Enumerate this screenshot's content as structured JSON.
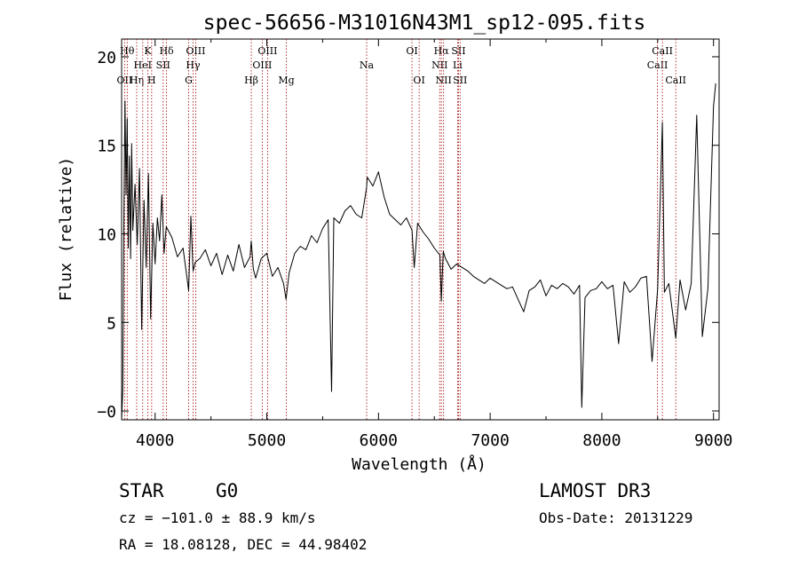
{
  "chart_data": {
    "type": "line",
    "title": "spec-56656-M31016N43M1_sp12-095.fits",
    "xlabel": "Wavelength (Å)",
    "ylabel": "Flux (relative)",
    "xlim": [
      3700,
      9050
    ],
    "ylim": [
      -0.5,
      21
    ],
    "x_ticks": [
      4000,
      5000,
      6000,
      7000,
      8000,
      9000
    ],
    "y_ticks": [
      0,
      5,
      10,
      15,
      20
    ],
    "x_tick_labels": [
      "4000",
      "5000",
      "6000",
      "7000",
      "8000",
      "9000"
    ],
    "y_tick_labels": [
      "−0",
      "5",
      "10",
      "15",
      "20"
    ],
    "grid": false,
    "series": [
      {
        "name": "flux",
        "x": [
          3700,
          3710,
          3720,
          3730,
          3740,
          3750,
          3760,
          3770,
          3780,
          3790,
          3800,
          3820,
          3840,
          3860,
          3880,
          3900,
          3920,
          3940,
          3960,
          3980,
          4000,
          4020,
          4040,
          4060,
          4080,
          4100,
          4150,
          4200,
          4250,
          4300,
          4320,
          4340,
          4360,
          4400,
          4450,
          4500,
          4550,
          4600,
          4650,
          4700,
          4750,
          4800,
          4850,
          4861,
          4880,
          4900,
          4950,
          5000,
          5050,
          5100,
          5150,
          5172,
          5200,
          5250,
          5300,
          5350,
          5400,
          5450,
          5500,
          5550,
          5580,
          5600,
          5650,
          5700,
          5750,
          5800,
          5850,
          5893,
          5900,
          5950,
          6000,
          6050,
          6100,
          6150,
          6200,
          6250,
          6300,
          6320,
          6350,
          6400,
          6450,
          6500,
          6550,
          6563,
          6580,
          6600,
          6650,
          6700,
          6750,
          6800,
          6850,
          6900,
          6950,
          7000,
          7050,
          7100,
          7150,
          7200,
          7250,
          7300,
          7350,
          7400,
          7450,
          7500,
          7550,
          7600,
          7650,
          7700,
          7750,
          7800,
          7820,
          7850,
          7900,
          7950,
          8000,
          8050,
          8100,
          8150,
          8200,
          8250,
          8300,
          8350,
          8400,
          8450,
          8500,
          8542,
          8560,
          8600,
          8662,
          8700,
          8750,
          8800,
          8850,
          8900,
          8950,
          9000,
          9020
        ],
        "y": [
          -0.5,
          1.2,
          10.5,
          17.5,
          12.2,
          16.5,
          9.2,
          14.4,
          8.6,
          15.1,
          10.2,
          12.8,
          9.4,
          13.7,
          4.6,
          11.9,
          8.1,
          13.4,
          5.2,
          10.6,
          8.3,
          10.9,
          9.6,
          12.2,
          8.9,
          10.4,
          9.8,
          8.7,
          9.2,
          6.8,
          11.0,
          7.9,
          8.4,
          8.6,
          9.1,
          8.2,
          8.9,
          7.7,
          8.8,
          7.9,
          9.4,
          8.1,
          8.7,
          9.6,
          8.0,
          7.5,
          8.6,
          8.9,
          7.6,
          8.1,
          7.2,
          6.3,
          7.8,
          8.9,
          9.3,
          9.1,
          9.9,
          9.5,
          10.3,
          10.8,
          1.1,
          10.9,
          10.6,
          11.3,
          11.6,
          11.1,
          10.9,
          12.6,
          13.2,
          12.7,
          13.5,
          12.1,
          11.1,
          10.8,
          10.5,
          10.9,
          10.2,
          8.1,
          10.6,
          10.1,
          9.7,
          9.2,
          8.8,
          6.2,
          9.0,
          8.6,
          8.0,
          8.3,
          8.1,
          7.9,
          7.6,
          7.4,
          7.2,
          7.5,
          7.3,
          7.1,
          6.9,
          7.0,
          6.3,
          5.6,
          6.8,
          7.0,
          7.4,
          6.5,
          7.1,
          6.9,
          7.2,
          7.0,
          6.6,
          7.1,
          0.2,
          6.4,
          6.8,
          6.9,
          7.3,
          6.9,
          7.1,
          3.8,
          7.3,
          6.7,
          7.0,
          7.5,
          7.6,
          2.8,
          6.9,
          16.3,
          6.7,
          7.2,
          4.1,
          7.4,
          5.7,
          7.2,
          16.7,
          4.2,
          6.9,
          17.2,
          18.5
        ]
      }
    ],
    "line_markers": [
      {
        "name": "OII",
        "x": 3727,
        "row": 3
      },
      {
        "name": "Hθ",
        "x": 3750,
        "row": 1
      },
      {
        "name": "Hη",
        "x": 3835,
        "row": 3
      },
      {
        "name": "HeI",
        "x": 3889,
        "row": 2
      },
      {
        "name": "K",
        "x": 3934,
        "row": 1
      },
      {
        "name": "H",
        "x": 3969,
        "row": 3
      },
      {
        "name": "SII",
        "x": 4072,
        "row": 2
      },
      {
        "name": "Hδ",
        "x": 4102,
        "row": 1
      },
      {
        "name": "G",
        "x": 4300,
        "row": 3
      },
      {
        "name": "Hγ",
        "x": 4340,
        "row": 2
      },
      {
        "name": "OIII",
        "x": 4363,
        "row": 1
      },
      {
        "name": "Hβ",
        "x": 4861,
        "row": 3
      },
      {
        "name": "OIII",
        "x": 4959,
        "row": 2
      },
      {
        "name": "OIII",
        "x": 5007,
        "row": 1
      },
      {
        "name": "Mg",
        "x": 5175,
        "row": 3
      },
      {
        "name": "Na",
        "x": 5894,
        "row": 2
      },
      {
        "name": "OI",
        "x": 6300,
        "row": 1
      },
      {
        "name": "OI",
        "x": 6364,
        "row": 3
      },
      {
        "name": "NII",
        "x": 6548,
        "row": 2
      },
      {
        "name": "Hα",
        "x": 6563,
        "row": 1
      },
      {
        "name": "NII",
        "x": 6583,
        "row": 3
      },
      {
        "name": "Li",
        "x": 6708,
        "row": 2
      },
      {
        "name": "SII",
        "x": 6717,
        "row": 1
      },
      {
        "name": "SII",
        "x": 6731,
        "row": 3
      },
      {
        "name": "CaII",
        "x": 8498,
        "row": 2
      },
      {
        "name": "CaII",
        "x": 8542,
        "row": 1
      },
      {
        "name": "CaII",
        "x": 8662,
        "row": 3
      }
    ]
  },
  "info": {
    "class": "STAR",
    "subclass": "G0",
    "survey": "LAMOST DR3",
    "cz": "cz = −101.0 ± 88.9 km/s",
    "obs_date": "Obs-Date: 20131229",
    "coords": "RA =  18.08128, DEC =  44.98402"
  }
}
